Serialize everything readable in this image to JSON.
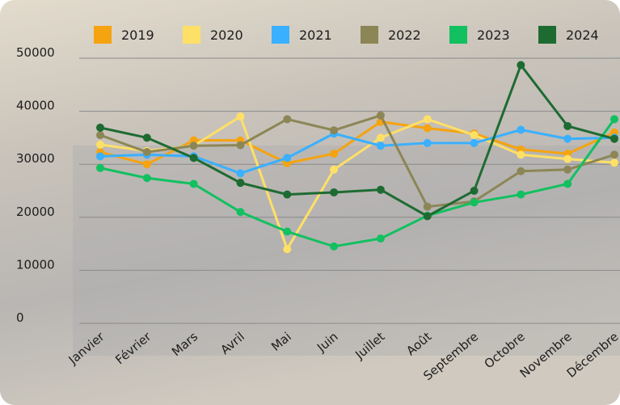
{
  "chart_data": {
    "type": "line",
    "categories": [
      "Janvier",
      "Février",
      "Mars",
      "Avril",
      "Mai",
      "Juin",
      "Juillet",
      "Août",
      "Septembre",
      "Octobre",
      "Novembre",
      "Décembre"
    ],
    "series": [
      {
        "name": "2019",
        "color": "#f5a30f",
        "values": [
          32300,
          30000,
          34500,
          34500,
          30200,
          32000,
          38000,
          36800,
          35800,
          32800,
          32000,
          36000
        ]
      },
      {
        "name": "2020",
        "color": "#ffe066",
        "values": [
          33700,
          32500,
          33500,
          39000,
          14000,
          29000,
          35000,
          38500,
          35500,
          31800,
          31000,
          30300
        ]
      },
      {
        "name": "2021",
        "color": "#3ab0ff",
        "values": [
          31500,
          31800,
          31500,
          28300,
          31200,
          35800,
          33500,
          34000,
          34000,
          36500,
          34800,
          35000
        ]
      },
      {
        "name": "2022",
        "color": "#8c8656",
        "values": [
          35500,
          32300,
          33500,
          33600,
          38500,
          36400,
          39200,
          22000,
          23000,
          28700,
          29000,
          31800
        ]
      },
      {
        "name": "2023",
        "color": "#12c060",
        "values": [
          29300,
          27400,
          26300,
          21000,
          17300,
          14500,
          16000,
          20300,
          22800,
          24300,
          26300,
          38500
        ]
      },
      {
        "name": "2024",
        "color": "#1e6b32",
        "values": [
          36900,
          35000,
          31200,
          26500,
          24300,
          24700,
          25200,
          20200,
          25000,
          48700,
          37200,
          34800
        ]
      }
    ],
    "ylim": [
      0,
      50000
    ],
    "yticks": [
      0,
      10000,
      20000,
      30000,
      40000,
      50000
    ],
    "grid": true
  }
}
